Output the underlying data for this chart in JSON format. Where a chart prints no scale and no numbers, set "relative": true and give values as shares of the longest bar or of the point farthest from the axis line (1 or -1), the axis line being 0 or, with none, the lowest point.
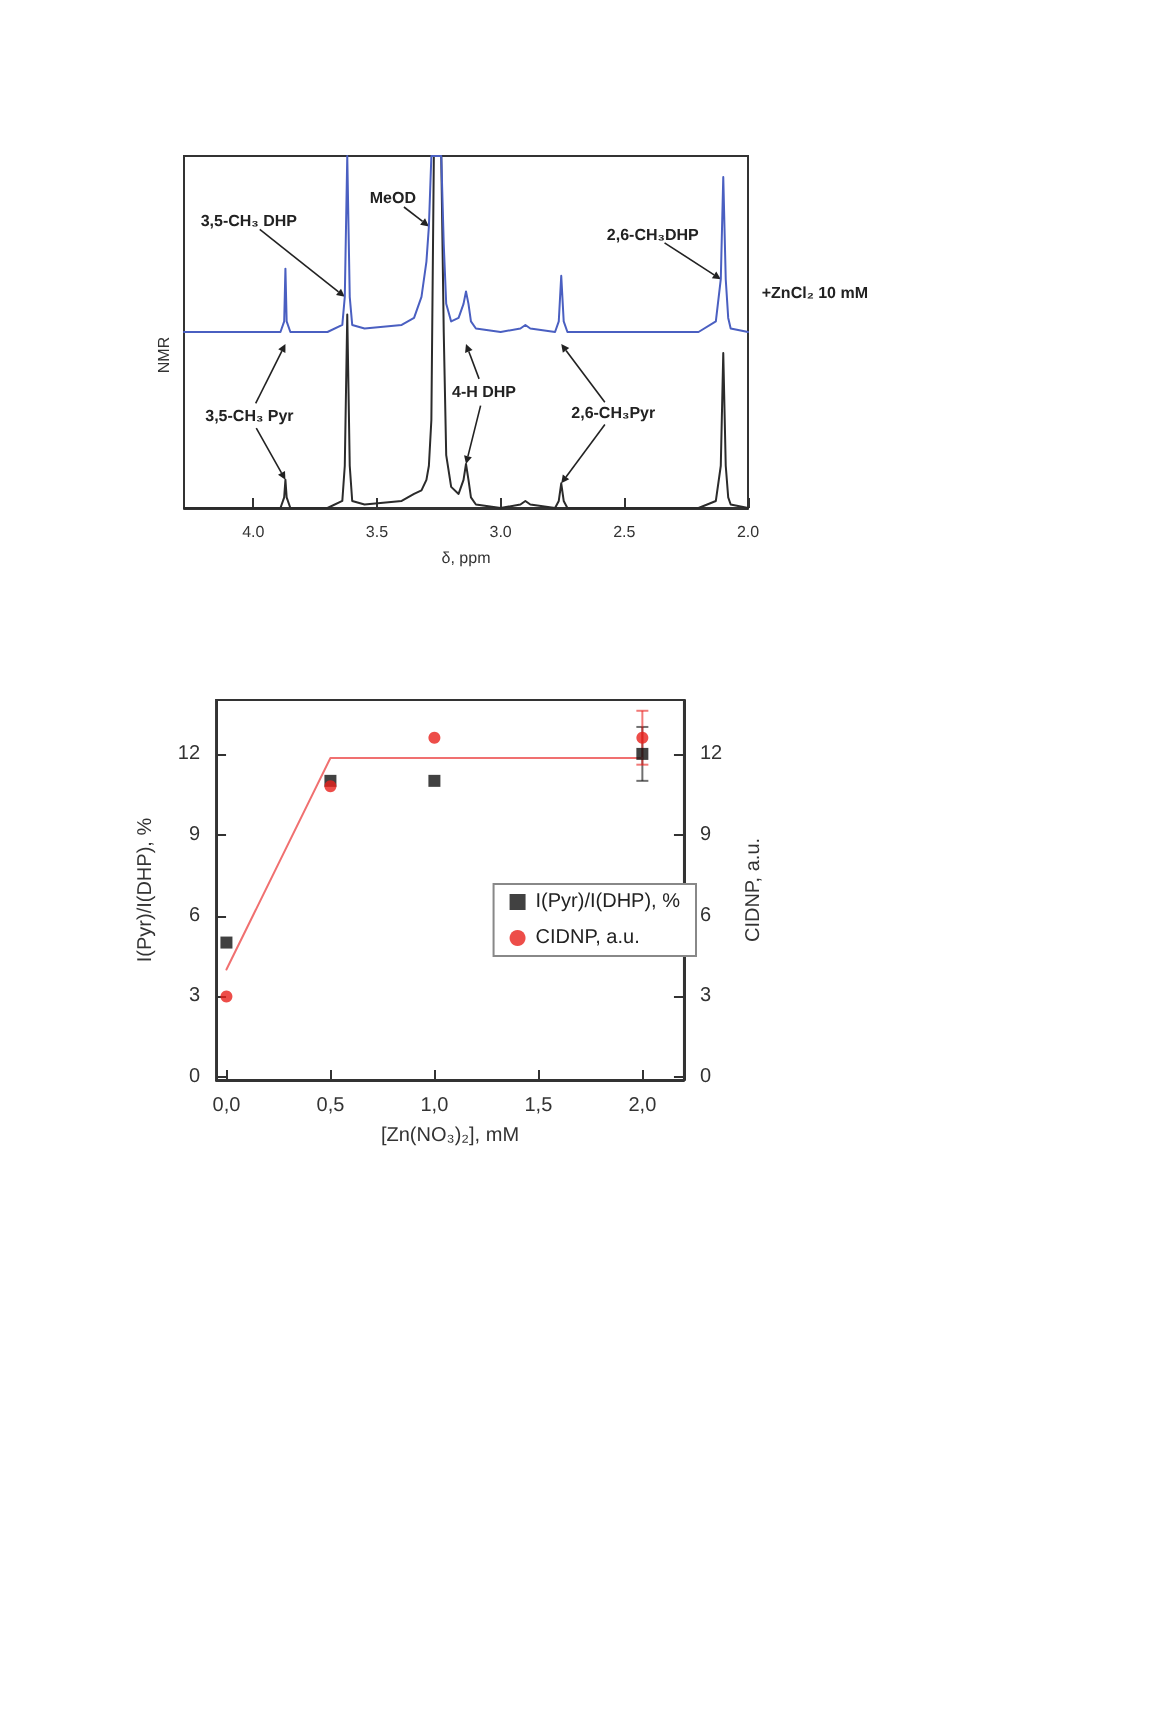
{
  "chart_data": [
    {
      "type": "line",
      "xlabel": "δ, ppm",
      "ylabel": "NMR",
      "relative": true,
      "tick_labels": "x",
      "xlim": [
        4.28,
        2.0
      ],
      "xticks": [
        {
          "value": 4.0,
          "label": "4.0"
        },
        {
          "value": 3.5,
          "label": "3.5"
        },
        {
          "value": 3.0,
          "label": "3.0"
        },
        {
          "value": 2.5,
          "label": "2.5"
        },
        {
          "value": 2.0,
          "label": "2.0"
        }
      ],
      "x": [
        4.28,
        3.95,
        3.89,
        3.875,
        3.87,
        3.865,
        3.85,
        3.7,
        3.64,
        3.63,
        3.62,
        3.61,
        3.6,
        3.55,
        3.4,
        3.35,
        3.32,
        3.3,
        3.29,
        3.28,
        3.27,
        3.26,
        3.25,
        3.24,
        3.23,
        3.22,
        3.2,
        3.17,
        3.15,
        3.14,
        3.13,
        3.12,
        3.1,
        3.0,
        2.92,
        2.9,
        2.88,
        2.78,
        2.765,
        2.755,
        2.745,
        2.73,
        2.5,
        2.2,
        2.13,
        2.11,
        2.1,
        2.09,
        2.08,
        2.07,
        2.0
      ],
      "series": [
        {
          "color": "#2b2b2b",
          "values": [
            0,
            0,
            0,
            0.03,
            0.08,
            0.03,
            0,
            0,
            0.02,
            0.12,
            0.55,
            0.12,
            0.02,
            0.01,
            0.02,
            0.04,
            0.05,
            0.08,
            0.12,
            0.25,
            1,
            1,
            1,
            1,
            0.5,
            0.15,
            0.06,
            0.04,
            0.08,
            0.125,
            0.08,
            0.03,
            0.01,
            0,
            0.01,
            0.02,
            0.01,
            0,
            0.02,
            0.07,
            0.02,
            0,
            0,
            0,
            0.02,
            0.12,
            0.44,
            0.12,
            0.03,
            0.01,
            0
          ]
        },
        {
          "color": "#4a5fc1",
          "values": [
            0.5,
            0.5,
            0.5,
            0.53,
            0.68,
            0.53,
            0.5,
            0.5,
            0.52,
            0.6,
            1,
            0.6,
            0.52,
            0.51,
            0.52,
            0.54,
            0.6,
            0.7,
            0.8,
            1,
            1,
            1,
            1,
            1,
            0.75,
            0.58,
            0.53,
            0.54,
            0.58,
            0.615,
            0.58,
            0.53,
            0.51,
            0.5,
            0.51,
            0.52,
            0.51,
            0.5,
            0.53,
            0.66,
            0.53,
            0.5,
            0.5,
            0.5,
            0.53,
            0.65,
            0.94,
            0.65,
            0.54,
            0.51,
            0.5
          ]
        }
      ],
      "annotations": [
        {
          "text": "3,5-CH₃ DHP",
          "x": 3.63,
          "y": 0.6
        },
        {
          "text": "MeOD",
          "x": 3.29,
          "y": 0.8
        },
        {
          "text": "2,6-CH₃DHP",
          "x": 2.11,
          "y": 0.65
        },
        {
          "text": "+ZnCl₂ 10 mM",
          "x": 2.09,
          "y": 0.65
        },
        {
          "text": "3,5-CH₃ Pyr",
          "x": 3.87,
          "y": 0.08
        },
        {
          "text": "4-H DHP",
          "x": 3.14,
          "y": 0.125
        },
        {
          "text": "2,6-CH₃Pyr",
          "x": 2.755,
          "y": 0.07
        }
      ]
    },
    {
      "type": "scatter",
      "xlabel": "[Zn(NO₃)₂], mM",
      "ylabel": "I(Pyr)/I(DHP), %",
      "y2label": "CIDNP, a.u.",
      "legend": "right",
      "xlim": [
        -0.05,
        2.2
      ],
      "xticks": [
        {
          "value": 0,
          "label": "0,0"
        },
        {
          "value": 0.5,
          "label": "0,5"
        },
        {
          "value": 1,
          "label": "1,0"
        },
        {
          "value": 1.5,
          "label": "1,5"
        },
        {
          "value": 2,
          "label": "2,0"
        }
      ],
      "ylim": [
        -0.1,
        14
      ],
      "yticks": [
        0,
        3,
        6,
        9,
        12
      ],
      "y2lim": [
        -0.1,
        14
      ],
      "y2ticks": [
        0,
        3,
        6,
        9,
        12
      ],
      "x": [
        0,
        0.5,
        1,
        2
      ],
      "series": [
        {
          "name": "I(Pyr)/I(DHP), %",
          "color": "#111111",
          "marker": "square",
          "values": [
            5,
            11,
            11,
            12
          ],
          "errors": [
            null,
            null,
            null,
            1
          ]
        },
        {
          "name": "CIDNP, a.u.",
          "color": "#e8201c",
          "marker": "circle",
          "axis": "y2",
          "values": [
            3,
            10.8,
            12.6,
            12.6
          ],
          "errors": [
            null,
            null,
            null,
            1
          ]
        },
        {
          "type": "line",
          "color": "#f07070",
          "marker": "none",
          "axis": "y2",
          "x": [
            0,
            0.5,
            2
          ],
          "values": [
            4,
            11.85,
            11.85
          ]
        }
      ]
    }
  ]
}
